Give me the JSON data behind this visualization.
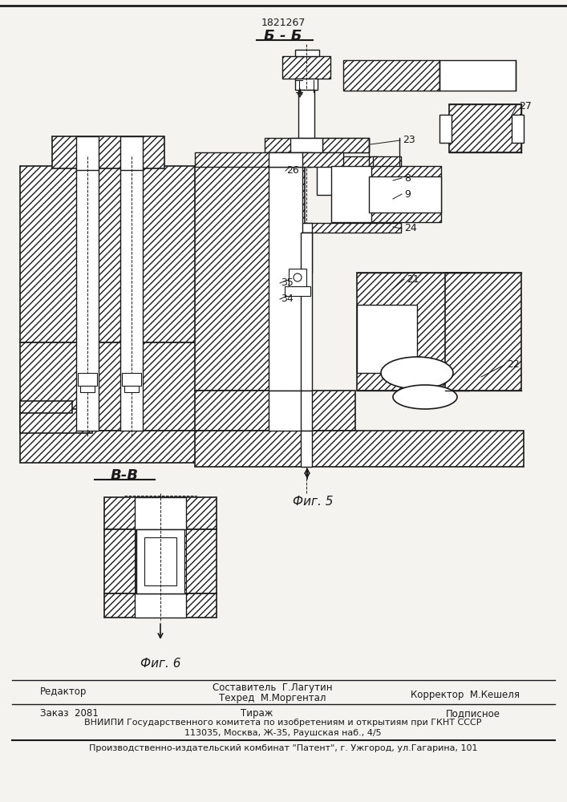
{
  "patent_number": "1821267",
  "section_label_top": "Б - Б",
  "section_label_bottom": "В-В",
  "fig5_label": "Фиг. 5",
  "fig6_label": "Фиг. 6",
  "background_color": "#f5f3f0",
  "line_color": "#1a1a1a",
  "editor_line": "Редактор",
  "composer_line": "Составитель  Г.Лагутин",
  "techred_line": "Техред  М.Моргентал",
  "corrector_line": "Корректор  М.Кешеля",
  "order_line": "Заказ  2081",
  "tirazh_line": "Тираж",
  "podpisnoe_line": "Подписное",
  "vniiipi_line": "ВНИИПИ Государственного комитета по изобретениям и открытиям при ГКНТ СССР",
  "address_line": "113035, Москва, Ж-35, Раушская наб., 4/5",
  "publisher_line": "Производственно-издательский комбинат \"Патент\", г. Ужгород, ул.Гагарина, 101"
}
